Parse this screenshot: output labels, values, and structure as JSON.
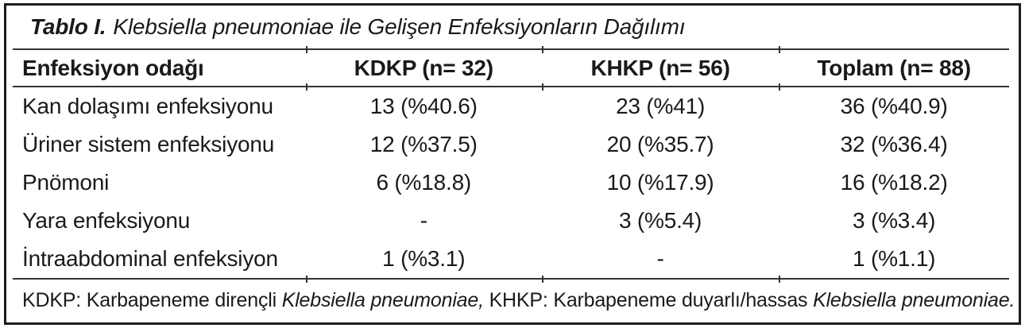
{
  "table": {
    "title": {
      "label": "Tablo I.",
      "text": "Klebsiella pneumoniae ile Gelişen Enfeksiyonların Dağılımı"
    },
    "columns": [
      "Enfeksiyon odağı",
      "KDKP (n= 32)",
      "KHKP (n= 56)",
      "Toplam (n= 88)"
    ],
    "rows": [
      [
        "Kan dolaşımı enfeksiyonu",
        "13 (%40.6)",
        "23 (%41)",
        "36 (%40.9)"
      ],
      [
        "Üriner sistem enfeksiyonu",
        "12 (%37.5)",
        "20 (%35.7)",
        "32 (%36.4)"
      ],
      [
        "Pnömoni",
        "6 (%18.8)",
        "10 (%17.9)",
        "16 (%18.2)"
      ],
      [
        "Yara enfeksiyonu",
        "-",
        "3 (%5.4)",
        "3 (%3.4)"
      ],
      [
        "İntraabdominal enfeksiyon",
        "1 (%3.1)",
        "-",
        "1 (%1.1)"
      ]
    ],
    "footnote_segments": [
      {
        "text": "KDKP: Karbapeneme dirençli ",
        "italic": false
      },
      {
        "text": "Klebsiella pneumoniae,",
        "italic": true
      },
      {
        "text": " KHKP: Karbapeneme duyarlı/hassas ",
        "italic": false
      },
      {
        "text": "Klebsiella pneumoniae.",
        "italic": true
      }
    ],
    "colors": {
      "background": "#ffffff",
      "border": "#1c1c1c",
      "rule": "#333333",
      "text": "#1a1a1a"
    }
  }
}
